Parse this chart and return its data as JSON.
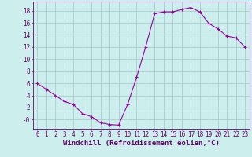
{
  "xlabel": "Windchill (Refroidissement éolien,°C)",
  "x": [
    0,
    1,
    2,
    3,
    4,
    5,
    6,
    7,
    8,
    9,
    10,
    11,
    12,
    13,
    14,
    15,
    16,
    17,
    18,
    19,
    20,
    21,
    22,
    23
  ],
  "y": [
    6,
    5,
    4,
    3,
    2.5,
    1,
    0.5,
    -0.5,
    -0.8,
    -0.9,
    2.5,
    7,
    12,
    17.5,
    17.8,
    17.8,
    18.2,
    18.5,
    17.8,
    15.9,
    15,
    13.8,
    13.5,
    12
  ],
  "line_color": "#990099",
  "marker": "+",
  "marker_size": 3,
  "marker_lw": 0.8,
  "bg_color": "#cceeed",
  "grid_color": "#aacccc",
  "ylim": [
    -1.5,
    19.5
  ],
  "xlim": [
    -0.5,
    23.5
  ],
  "yticks": [
    0,
    2,
    4,
    6,
    8,
    10,
    12,
    14,
    16,
    18
  ],
  "ytick_labels": [
    "-0",
    "2",
    "4",
    "6",
    "8",
    "10",
    "12",
    "14",
    "16",
    "18"
  ],
  "xticks": [
    0,
    1,
    2,
    3,
    4,
    5,
    6,
    7,
    8,
    9,
    10,
    11,
    12,
    13,
    14,
    15,
    16,
    17,
    18,
    19,
    20,
    21,
    22,
    23
  ],
  "xtick_labels": [
    "0",
    "1",
    "2",
    "3",
    "4",
    "5",
    "6",
    "7",
    "8",
    "9",
    "10",
    "11",
    "12",
    "13",
    "14",
    "15",
    "16",
    "17",
    "18",
    "19",
    "20",
    "21",
    "22",
    "23"
  ],
  "xlabel_fontsize": 6.5,
  "tick_fontsize": 5.5,
  "label_color": "#660066",
  "line_width": 0.8
}
